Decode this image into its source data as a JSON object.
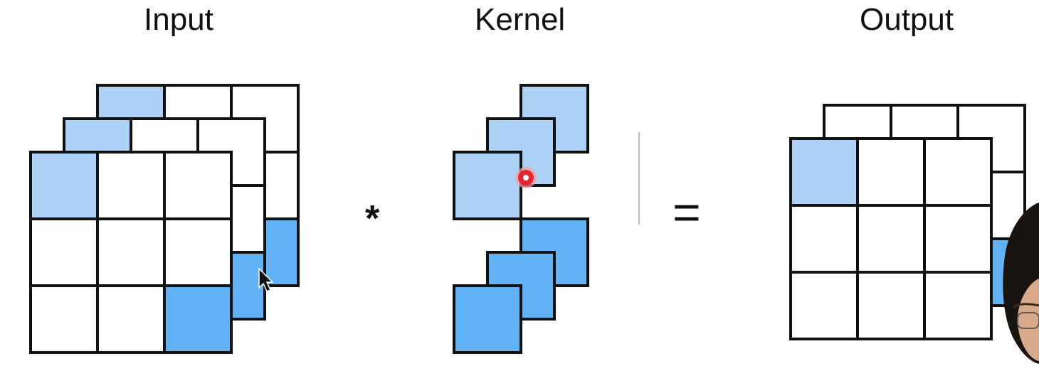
{
  "titles": {
    "input": "Input",
    "kernel": "Kernel",
    "output": "Output"
  },
  "operators": {
    "convolve": "*",
    "equals": "="
  },
  "colors": {
    "light_blue": "#aed1f7",
    "mid_blue": "#62b3f5",
    "grid_line": "#111111",
    "cursor_dot": "#e8252a"
  }
}
